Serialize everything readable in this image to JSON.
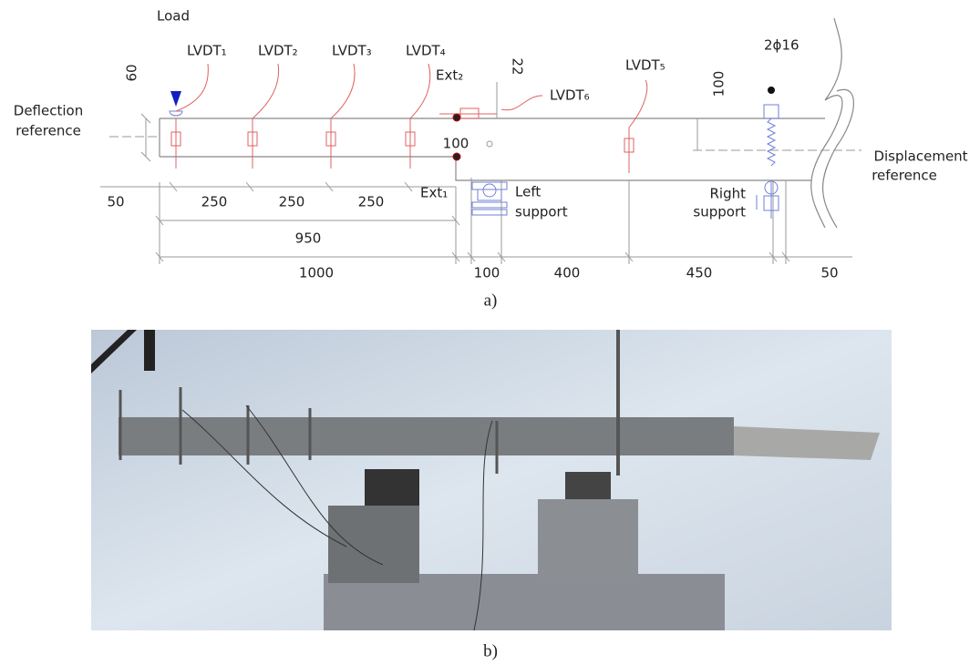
{
  "load": "Load",
  "sensors": [
    "LVDT₁",
    "LVDT₂",
    "LVDT₃",
    "LVDT₄",
    "LVDT₅",
    "LVDT₆"
  ],
  "extensometers": [
    "Ext₁",
    "Ext₂"
  ],
  "reinforcement": "2ϕ16",
  "deflection_reference": [
    "Deflection",
    "reference"
  ],
  "displacement_reference": [
    "Displacement",
    "reference"
  ],
  "left_support": [
    "Left",
    "support"
  ],
  "right_support": [
    "Right",
    "support"
  ],
  "dimensions": [
    60,
    22,
    100,
    100,
    50,
    250,
    250,
    250,
    950,
    1000,
    100,
    400,
    450,
    50
  ],
  "captions": [
    "a)",
    "b)"
  ]
}
